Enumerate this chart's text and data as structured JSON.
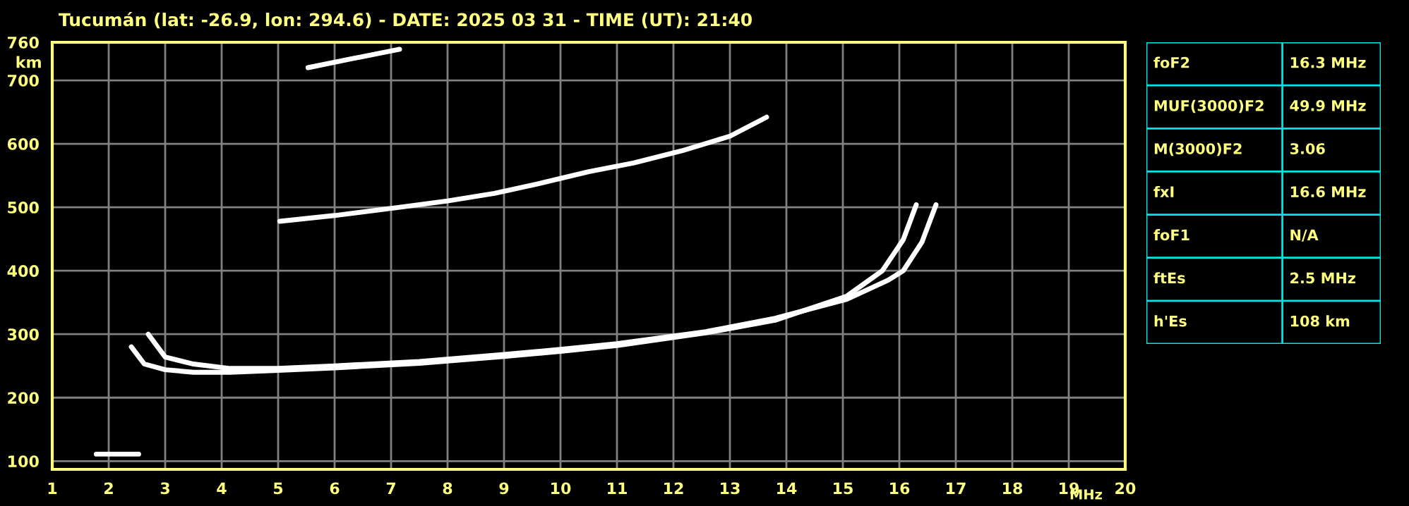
{
  "chart_data": [
    {
      "type": "line",
      "title": "Tucumán (lat: -26.9, lon: 294.6) - DATE: 2025 03 31 - TIME (UT): 21:40",
      "xlabel": "MHz",
      "ylabel": "km",
      "xlim": [
        1,
        20
      ],
      "ylim": [
        87,
        760
      ],
      "xticks": [
        1,
        2,
        3,
        4,
        5,
        6,
        7,
        8,
        9,
        10,
        11,
        12,
        13,
        14,
        15,
        16,
        17,
        18,
        19,
        20
      ],
      "yticks": [
        100,
        200,
        300,
        400,
        500,
        600,
        700,
        760
      ],
      "grid": true,
      "legend": false,
      "marker": "none",
      "line_style": "solid",
      "series": [
        {
          "color": "#ffffff",
          "x": [
            1.78,
            2.53
          ],
          "values": [
            111,
            111
          ]
        },
        {
          "color": "#ffffff",
          "x": [
            2.4,
            2.63,
            3.0,
            3.5,
            4.15,
            5,
            6,
            7.5,
            9,
            10,
            11,
            12.57,
            13.8,
            15.07,
            15.7,
            16.07,
            16.3
          ],
          "values": [
            280,
            253,
            244,
            240,
            240,
            243,
            247,
            254,
            265,
            273,
            282,
            302,
            322,
            360,
            400,
            449,
            504
          ]
        },
        {
          "color": "#ffffff",
          "x": [
            2.7,
            3.0,
            3.5,
            4.15,
            5,
            6,
            7.5,
            9,
            10,
            11,
            12.57,
            13.8,
            15.07,
            15.8,
            16.07,
            16.4,
            16.65
          ],
          "values": [
            300,
            264,
            253,
            246,
            246,
            250,
            257,
            268,
            276,
            285,
            304,
            325,
            355,
            385,
            400,
            445,
            504
          ]
        },
        {
          "color": "#ffffff",
          "x": [
            5.03,
            6,
            7.15,
            8,
            8.83,
            9.6,
            10.5,
            11.3,
            12.15,
            13,
            13.65
          ],
          "values": [
            478,
            487,
            500,
            510,
            522,
            537,
            556,
            570,
            589,
            612,
            642
          ]
        },
        {
          "color": "#ffffff",
          "x": [
            5.53,
            6.3,
            7.15
          ],
          "values": [
            720,
            734,
            749
          ]
        }
      ]
    },
    {
      "type": "other",
      "annotations": [
        "foF2",
        "16.3 MHz",
        "MUF(3000)F2",
        "49.9 MHz",
        "M(3000)F2",
        "3.06",
        "fxI",
        "16.6 MHz",
        "foF1",
        "N/A",
        "ftEs",
        "2.5 MHz",
        "h'Es",
        "108 km"
      ]
    }
  ]
}
